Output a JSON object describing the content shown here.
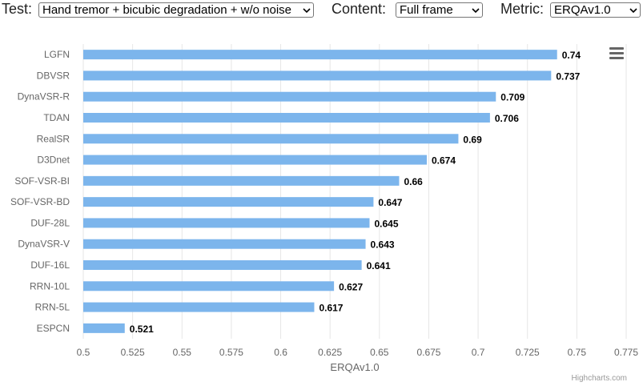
{
  "controls": {
    "test_label": "Test:",
    "test_value": "Hand tremor + bicubic degradation + w/o noise",
    "content_label": "Content:",
    "content_value": "Full frame",
    "metric_label": "Metric:",
    "metric_value": "ERQAv1.0"
  },
  "credits": "Highcharts.com",
  "menu_icon": "hamburger-menu-icon",
  "colors": {
    "bar": "#7cb5ec",
    "grid": "#e6e6e6",
    "axis_text": "#666666",
    "label_text": "#000000"
  },
  "chart_data": {
    "type": "bar",
    "orientation": "horizontal",
    "categories": [
      "LGFN",
      "DBVSR",
      "DynaVSR-R",
      "TDAN",
      "RealSR",
      "D3Dnet",
      "SOF-VSR-BI",
      "SOF-VSR-BD",
      "DUF-28L",
      "DynaVSR-V",
      "DUF-16L",
      "RRN-10L",
      "RRN-5L",
      "ESPCN"
    ],
    "values": [
      0.74,
      0.737,
      0.709,
      0.706,
      0.69,
      0.674,
      0.66,
      0.647,
      0.645,
      0.643,
      0.641,
      0.627,
      0.617,
      0.521
    ],
    "xlabel": "ERQAv1.0",
    "xlim": [
      0.5,
      0.775
    ],
    "ticks": [
      "0.5",
      "0.525",
      "0.55",
      "0.575",
      "0.6",
      "0.625",
      "0.65",
      "0.675",
      "0.7",
      "0.725",
      "0.75",
      "0.775"
    ],
    "grid": true,
    "data_labels": true
  }
}
